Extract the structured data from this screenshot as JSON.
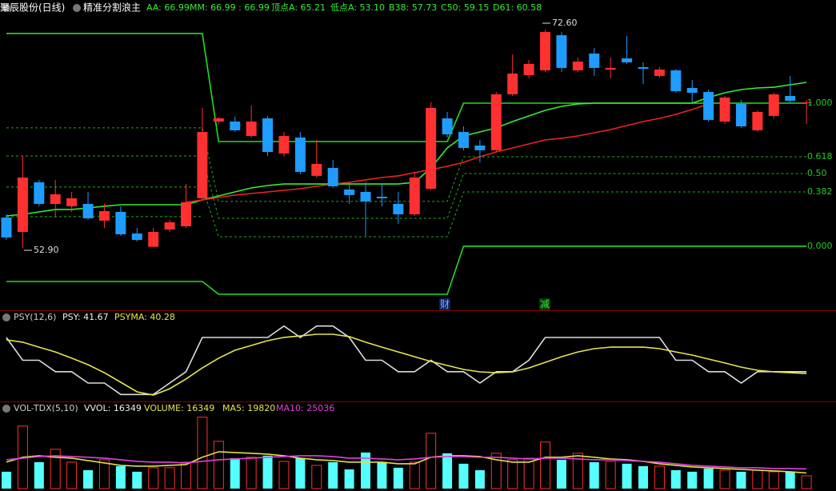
{
  "chart_data": [
    {
      "type": "candlestick",
      "title": "聚辰股份(日线)",
      "subtitle": "精准分割浪主",
      "header": [
        "AA: 66.99",
        "MM: 66.99 : 66.99",
        "顶点A: 65.21",
        "低点A: 53.10",
        "B38: 57.73",
        "C50: 59.15",
        "D61: 60.58"
      ],
      "up_color": "#ff3030",
      "down_color": "#1e9cff",
      "open": [
        55.64,
        54.34,
        58.82,
        56.87,
        56.66,
        56.87,
        55.36,
        56.15,
        54.2,
        53.0,
        54.56,
        54.85,
        57.38,
        64.3,
        64.3,
        63.0,
        64.59,
        61.42,
        62.86,
        59.4,
        60.12,
        58.17,
        57.95,
        57.52,
        56.87,
        55.93,
        58.24,
        64.59,
        63.36,
        62.14,
        61.71,
        66.76,
        68.49,
        68.92,
        72.09,
        68.92,
        70.44,
        68.99,
        70.0,
        69.21,
        68.42,
        68.92,
        67.33,
        66.97,
        64.3,
        65.89,
        63.51,
        64.81,
        66.61,
        66.03
      ],
      "high": [
        55.93,
        61.2,
        59.04,
        59.04,
        57.95,
        57.95,
        56.87,
        56.66,
        54.71,
        54.71,
        55.43,
        58.67,
        65.53,
        64.74,
        64.74,
        65.75,
        64.81,
        63.36,
        63.36,
        62.64,
        60.84,
        58.82,
        58.82,
        58.67,
        57.95,
        59.76,
        66.03,
        65.17,
        63.87,
        62.64,
        66.97,
        70.36,
        69.86,
        72.6,
        72.38,
        70.07,
        70.94,
        70.07,
        72.02,
        69.64,
        69.21,
        69.06,
        68.05,
        67.18,
        66.61,
        66.25,
        65.31,
        66.9,
        68.42,
        66.25
      ],
      "low": [
        53.62,
        52.9,
        56.66,
        55.64,
        56.15,
        55.43,
        54.71,
        53.99,
        53.48,
        53.0,
        54.34,
        54.71,
        57.23,
        64.09,
        63.36,
        62.86,
        61.2,
        61.13,
        59.54,
        59.25,
        58.31,
        56.87,
        53.99,
        56.66,
        55.07,
        55.79,
        58.1,
        62.86,
        61.71,
        60.62,
        61.56,
        66.61,
        68.2,
        68.78,
        68.78,
        68.78,
        68.42,
        68.2,
        69.5,
        67.69,
        68.27,
        66.9,
        66.03,
        64.3,
        64.09,
        63.73,
        63.36,
        64.59,
        65.96,
        64.09
      ],
      "close": [
        53.84,
        59.25,
        56.87,
        57.74,
        57.38,
        55.57,
        56.22,
        54.13,
        53.62,
        54.34,
        55.21,
        57.02,
        63.36,
        64.59,
        63.51,
        64.3,
        61.56,
        63.0,
        59.76,
        60.48,
        58.46,
        57.67,
        57.09,
        57.38,
        55.93,
        59.25,
        65.53,
        63.15,
        61.92,
        61.71,
        66.76,
        68.63,
        69.5,
        72.38,
        69.14,
        69.71,
        69.14,
        69.14,
        69.64,
        69.06,
        68.99,
        67.04,
        66.9,
        64.45,
        66.47,
        63.87,
        65.17,
        66.76,
        66.18,
        66.03
      ],
      "series": [
        {
          "color": "#22dd22",
          "values": [
            72.25,
            72.25,
            72.25,
            72.25,
            72.25,
            72.25,
            72.25,
            72.25,
            72.25,
            72.25,
            72.25,
            72.25,
            72.25,
            62.5,
            62.5,
            62.5,
            62.5,
            62.5,
            62.5,
            62.5,
            62.5,
            62.5,
            62.5,
            62.5,
            62.5,
            62.5,
            62.5,
            62.5,
            65.96,
            65.96,
            65.96,
            65.96,
            65.96,
            65.96,
            65.96,
            65.96,
            65.96,
            65.96,
            65.96,
            65.96,
            65.96,
            65.96,
            65.96,
            65.96,
            65.96,
            65.96,
            65.96,
            65.96,
            65.96,
            65.96
          ]
        },
        {
          "color": "#22dd22",
          "values": [
            49.87,
            49.87,
            49.87,
            49.87,
            49.87,
            49.87,
            49.87,
            49.87,
            49.87,
            49.87,
            49.87,
            49.87,
            49.87,
            48.72,
            48.72,
            48.72,
            48.72,
            48.72,
            48.72,
            48.72,
            48.72,
            48.72,
            48.72,
            48.72,
            48.72,
            48.72,
            48.72,
            48.72,
            53.05,
            53.05,
            53.05,
            53.05,
            53.05,
            53.05,
            53.05,
            53.05,
            53.05,
            53.05,
            53.05,
            53.05,
            53.05,
            53.05,
            53.05,
            53.05,
            53.05,
            53.05,
            53.05,
            53.05,
            53.05,
            53.05
          ]
        },
        {
          "color": "#1fae1f",
          "dashed": true,
          "values": [
            63.73,
            63.73,
            63.73,
            63.73,
            63.73,
            63.73,
            63.73,
            63.73,
            63.73,
            63.73,
            63.73,
            63.73,
            63.73,
            57.09,
            57.09,
            57.09,
            57.09,
            57.09,
            57.09,
            57.09,
            57.09,
            57.09,
            57.09,
            57.09,
            57.09,
            57.09,
            57.09,
            57.09,
            61.13,
            61.13,
            61.13,
            61.13,
            61.13,
            61.13,
            61.13,
            61.13,
            61.13,
            61.13,
            61.13,
            61.13,
            61.13,
            61.13,
            61.13,
            61.13,
            61.13,
            61.13,
            61.13,
            61.13,
            61.13,
            61.13
          ]
        },
        {
          "color": "#1fae1f",
          "dashed": true,
          "values": [
            61.2,
            61.2,
            61.2,
            61.2,
            61.2,
            61.2,
            61.2,
            61.2,
            61.2,
            61.2,
            61.2,
            61.2,
            61.2,
            55.57,
            55.57,
            55.57,
            55.57,
            55.57,
            55.57,
            55.57,
            55.57,
            55.57,
            55.57,
            55.57,
            55.57,
            55.57,
            55.57,
            55.57,
            59.61,
            59.61,
            59.61,
            59.61,
            59.61,
            59.61,
            59.61,
            59.61,
            59.61,
            59.61,
            59.61,
            59.61,
            59.61,
            59.61,
            59.61,
            59.61,
            59.61,
            59.61,
            59.61,
            59.61,
            59.61,
            59.61
          ]
        },
        {
          "color": "#1fae1f",
          "dashed": true,
          "values": [
            58.39,
            58.39,
            58.39,
            58.39,
            58.39,
            58.39,
            58.39,
            58.39,
            58.39,
            58.39,
            58.39,
            58.39,
            58.39,
            53.91,
            53.91,
            53.91,
            53.91,
            53.91,
            53.91,
            53.91,
            53.91,
            53.91,
            53.91,
            53.91,
            53.91,
            53.91,
            53.91,
            53.91,
            57.95,
            57.95,
            57.95,
            57.95,
            57.95,
            57.95,
            57.95,
            57.95,
            57.95,
            57.95,
            57.95,
            57.95,
            57.95,
            57.95,
            57.95,
            57.95,
            57.95,
            57.95,
            57.95,
            57.95,
            57.95,
            57.95
          ]
        },
        {
          "color": "#1fae1f",
          "dashed": true,
          "values": [
            55.72,
            55.72,
            55.72,
            55.72,
            55.72,
            55.72,
            55.72,
            55.72,
            55.72,
            55.72,
            55.72,
            55.72,
            55.72,
            null,
            null,
            null,
            null,
            null,
            null,
            null,
            null,
            null,
            null,
            null,
            null,
            null,
            null,
            null,
            null,
            null,
            null,
            null,
            null,
            null,
            null,
            null,
            null,
            null,
            null,
            null,
            null,
            null,
            null,
            null,
            null,
            null,
            null,
            null,
            null,
            null
          ]
        },
        {
          "color": "#33ee33",
          "values": [
            55.79,
            55.93,
            56.15,
            56.37,
            56.37,
            56.51,
            56.66,
            56.8,
            56.8,
            56.8,
            56.8,
            56.8,
            57.23,
            57.59,
            57.95,
            58.31,
            58.53,
            58.67,
            58.67,
            58.67,
            58.67,
            58.67,
            58.67,
            58.67,
            58.67,
            58.82,
            60.12,
            61.92,
            63.0,
            63.36,
            63.73,
            64.3,
            64.81,
            65.31,
            65.67,
            65.89,
            65.96,
            65.96,
            65.96,
            65.96,
            65.96,
            65.96,
            65.96,
            66.47,
            66.9,
            67.19,
            67.33,
            67.4,
            67.62,
            67.84
          ]
        },
        {
          "color": "#ee2222",
          "values": [
            null,
            null,
            null,
            null,
            null,
            null,
            null,
            null,
            null,
            null,
            null,
            57.02,
            57.23,
            57.45,
            57.67,
            57.81,
            57.95,
            58.1,
            58.24,
            58.46,
            58.67,
            58.82,
            59.04,
            59.25,
            59.4,
            59.69,
            59.97,
            60.26,
            60.62,
            61.13,
            61.56,
            61.92,
            62.28,
            62.64,
            62.79,
            63.0,
            63.29,
            63.58,
            63.94,
            64.3,
            64.59,
            64.95,
            65.39,
            65.89,
            null,
            null,
            null,
            null,
            null,
            null
          ]
        }
      ],
      "ylim": [
        47.49,
        73.97
      ],
      "yticks": [
        {
          "value": 65.96,
          "label": "1.000"
        },
        {
          "value": 61.13,
          "label": "0.618"
        },
        {
          "value": 59.61,
          "label": "0.50"
        },
        {
          "value": 57.95,
          "label": "0.382"
        },
        {
          "value": 53.05,
          "label": "0.000"
        }
      ],
      "annotations": [
        {
          "value": 72.6,
          "label": "72.60"
        },
        {
          "value": 52.9,
          "label": "52.90"
        }
      ],
      "markers": [
        "财",
        "减"
      ]
    },
    {
      "type": "line",
      "title": "PSY(12,6)",
      "header": [
        "PSY: 41.67",
        "PSYMA: 40.28"
      ],
      "series": [
        {
          "color": "#dddddd",
          "values": [
            66.67,
            50,
            50,
            41.67,
            41.67,
            33.33,
            33.33,
            25,
            25,
            25,
            33.33,
            41.67,
            66.67,
            66.67,
            66.67,
            66.67,
            66.67,
            75,
            66.67,
            75,
            75,
            66.67,
            50,
            50,
            41.67,
            41.67,
            50,
            41.67,
            41.67,
            33.33,
            41.67,
            41.67,
            50,
            66.67,
            66.67,
            66.67,
            66.67,
            66.67,
            66.67,
            66.67,
            66.67,
            50,
            50,
            41.67,
            41.67,
            33.33,
            41.67,
            41.67,
            41.67,
            41.67
          ]
        },
        {
          "color": "#e6e64c",
          "values": [
            64.9,
            63.2,
            59.6,
            56.1,
            51.5,
            46.8,
            40.9,
            33.9,
            26.9,
            24.6,
            29.2,
            36.3,
            44.4,
            51.5,
            57.3,
            60.8,
            64.3,
            66.7,
            67.8,
            69.0,
            69.0,
            67.3,
            63.2,
            59.6,
            56.1,
            52.6,
            49.1,
            46.2,
            43.3,
            41.5,
            40.9,
            41.5,
            44.4,
            48.5,
            52.6,
            56.1,
            58.5,
            59.6,
            59.6,
            59.6,
            58.5,
            56.1,
            53.8,
            50.9,
            48.0,
            45.0,
            42.7,
            41.5,
            40.9,
            40.28
          ]
        }
      ],
      "ylim": [
        19.9,
        84.2
      ]
    },
    {
      "type": "bar",
      "title": "VOL-TDX(5,10)",
      "header": [
        "VVOL: 16349",
        "VOLUME: 16349",
        "MA5: 19820",
        "MA10: 25036"
      ],
      "up_color": "#ff3030",
      "down_color": "#55ffff",
      "values": [
        21500,
        79700,
        33700,
        50100,
        33700,
        23500,
        36800,
        28600,
        21500,
        26600,
        26600,
        33700,
        91000,
        60300,
        38800,
        39900,
        41900,
        34700,
        38800,
        29600,
        33700,
        24500,
        46000,
        33700,
        26600,
        33700,
        70500,
        45000,
        31700,
        23500,
        45000,
        36800,
        38800,
        59300,
        36800,
        45000,
        33700,
        34700,
        31700,
        28600,
        28600,
        23500,
        21500,
        25600,
        23500,
        21500,
        23500,
        21500,
        21500,
        16349
      ],
      "series": [
        {
          "color": "#e0e040",
          "values": [
            33700,
            39900,
            41900,
            39900,
            38800,
            35800,
            32700,
            29600,
            28600,
            28600,
            29600,
            30700,
            39900,
            47000,
            46000,
            45000,
            43900,
            41900,
            38800,
            36800,
            35800,
            33700,
            33700,
            33700,
            31700,
            31700,
            39900,
            41900,
            41900,
            40900,
            36800,
            33700,
            33700,
            39900,
            39900,
            41900,
            39900,
            37800,
            36800,
            34700,
            31700,
            29600,
            27600,
            26600,
            25600,
            24500,
            23500,
            22500,
            21500,
            19820
          ]
        },
        {
          "color": "#e040e0",
          "values": [
            36800,
            38800,
            40900,
            41900,
            40900,
            39900,
            38800,
            36800,
            34700,
            33700,
            33700,
            32700,
            34700,
            36800,
            37800,
            38800,
            39900,
            40900,
            41900,
            41900,
            40900,
            38800,
            38800,
            37800,
            36800,
            37800,
            39900,
            40900,
            40900,
            39900,
            39900,
            38800,
            37800,
            38800,
            38800,
            37800,
            36800,
            36800,
            35800,
            34700,
            33700,
            31700,
            29600,
            28600,
            27600,
            26600,
            26600,
            25600,
            25600,
            25036
          ]
        }
      ],
      "ylim": [
        0,
        108000
      ]
    }
  ]
}
